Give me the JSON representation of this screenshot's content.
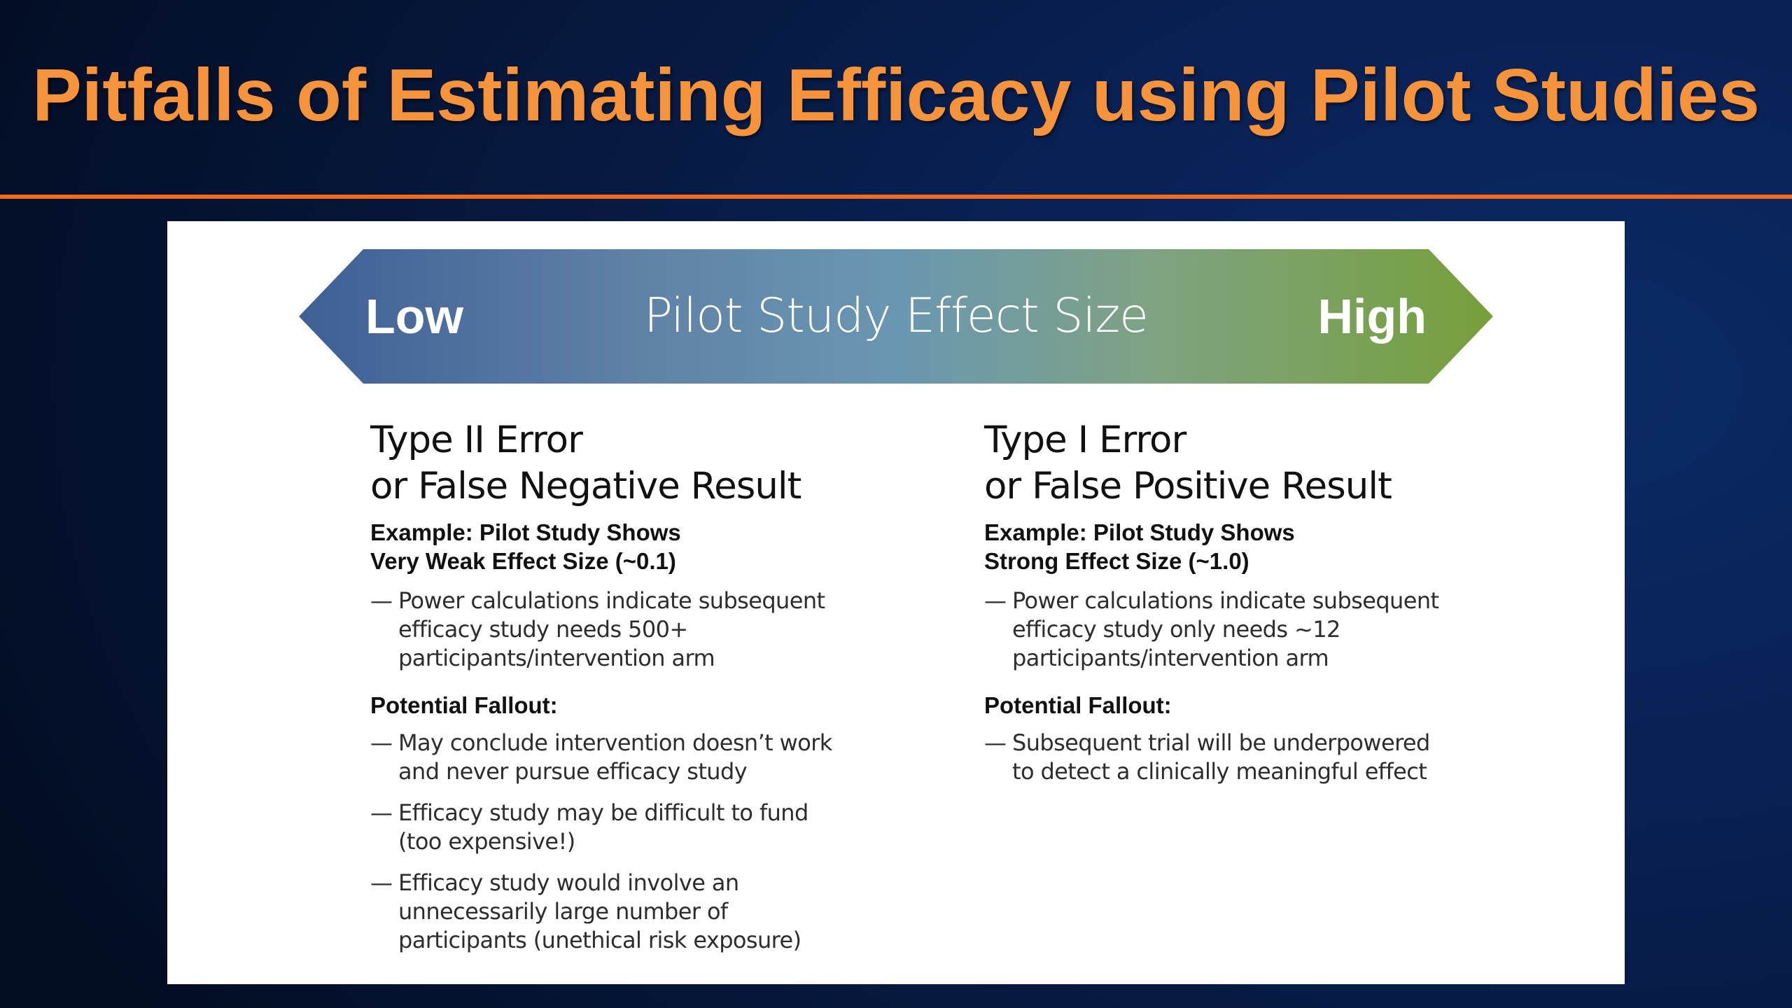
{
  "slide": {
    "title": "Pitfalls of Estimating Efficacy using Pilot Studies",
    "colors": {
      "title": "#f7933a",
      "rule": "#f26a1b",
      "background": "#071b45",
      "arrow_left": "#3f5f96",
      "arrow_mid": "#6a97b2",
      "arrow_right": "#76a03a"
    }
  },
  "arrow": {
    "left_label": "Low",
    "center_label": "Pilot Study Effect Size",
    "right_label": "High"
  },
  "left_column": {
    "heading_lines": [
      "Type II Error",
      "or False Negative Result"
    ],
    "example_lines": [
      "Example: Pilot Study Shows",
      "Very Weak Effect Size (~0.1)"
    ],
    "bullet_dash": "—",
    "bullets": [
      [
        "Power calculations indicate subsequent",
        "efficacy study needs 500+",
        "participants/intervention arm"
      ]
    ],
    "fallout_label": "Potential Fallout:",
    "fallout": [
      [
        "May conclude intervention doesn’t work",
        "and never pursue efficacy study"
      ],
      [
        "Efficacy study may be difficult to fund",
        "(too expensive!)"
      ],
      [
        "Efficacy study would involve an",
        "unnecessarily large number of",
        "participants (unethical risk exposure)"
      ]
    ]
  },
  "right_column": {
    "heading_lines": [
      "Type I Error",
      "or False Positive Result"
    ],
    "example_lines": [
      "Example: Pilot Study Shows",
      "Strong Effect Size (~1.0)"
    ],
    "bullet_dash": "—",
    "bullets": [
      [
        "Power calculations indicate subsequent",
        "efficacy study only needs ~12",
        "participants/intervention arm"
      ]
    ],
    "fallout_label": "Potential Fallout:",
    "fallout": [
      [
        "Subsequent trial will be underpowered",
        "to detect a clinically meaningful effect"
      ]
    ]
  }
}
